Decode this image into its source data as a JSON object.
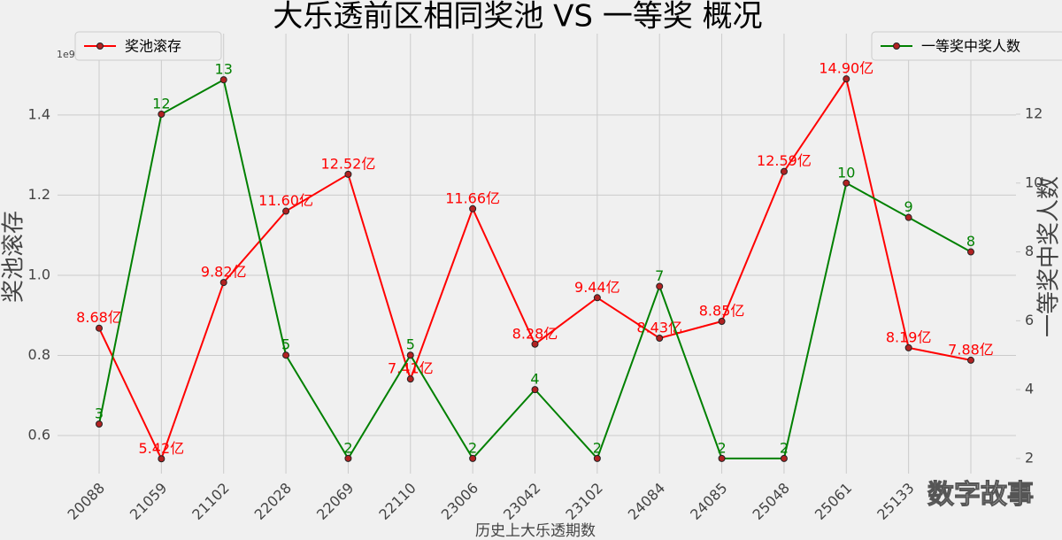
{
  "chart_data": {
    "type": "line",
    "title": "大乐透前区相同奖池 VS 一等奖 概况",
    "x_label": "历史上大乐透期数",
    "y_label": "奖池滚存",
    "y2_label": "一等奖中奖人数",
    "y_offset_label": "1e9",
    "watermark": "数字故事",
    "categories": [
      "20088",
      "21059",
      "21102",
      "22028",
      "22069",
      "22110",
      "23006",
      "23042",
      "23102",
      "24084",
      "24085",
      "25048",
      "25061",
      "25133",
      null
    ],
    "ylim": [
      0.505,
      1.603
    ],
    "yticks": [
      0.6,
      0.8,
      {
        "value": 1,
        "label": "1.0"
      },
      1.2,
      1.4
    ],
    "y2lim": [
      1.56,
      14.34
    ],
    "y2ticks": [
      2,
      4,
      6,
      8,
      10,
      12
    ],
    "grid": true,
    "series": [
      {
        "name": "奖池滚存",
        "color": "#ff0000",
        "axis": "y",
        "legend": "upper left",
        "values": [
          0.868,
          0.542,
          0.982,
          1.16,
          1.252,
          0.741,
          1.166,
          0.828,
          0.944,
          0.843,
          0.885,
          1.259,
          1.49,
          0.819,
          0.788
        ],
        "value_labels": [
          "8.68亿",
          "5.42亿",
          "9.82亿",
          "11.60亿",
          "12.52亿",
          "7.41亿",
          "11.66亿",
          "8.28亿",
          "9.44亿",
          "8.43亿",
          "8.85亿",
          "12.59亿",
          "14.90亿",
          "8.19亿",
          "7.88亿"
        ]
      },
      {
        "name": "一等奖中奖人数",
        "color": "#008000",
        "axis": "y2",
        "legend": "upper right",
        "values": [
          3,
          12,
          13,
          5,
          2,
          5,
          2,
          4,
          2,
          7,
          2,
          2,
          10,
          9,
          8
        ]
      }
    ]
  }
}
